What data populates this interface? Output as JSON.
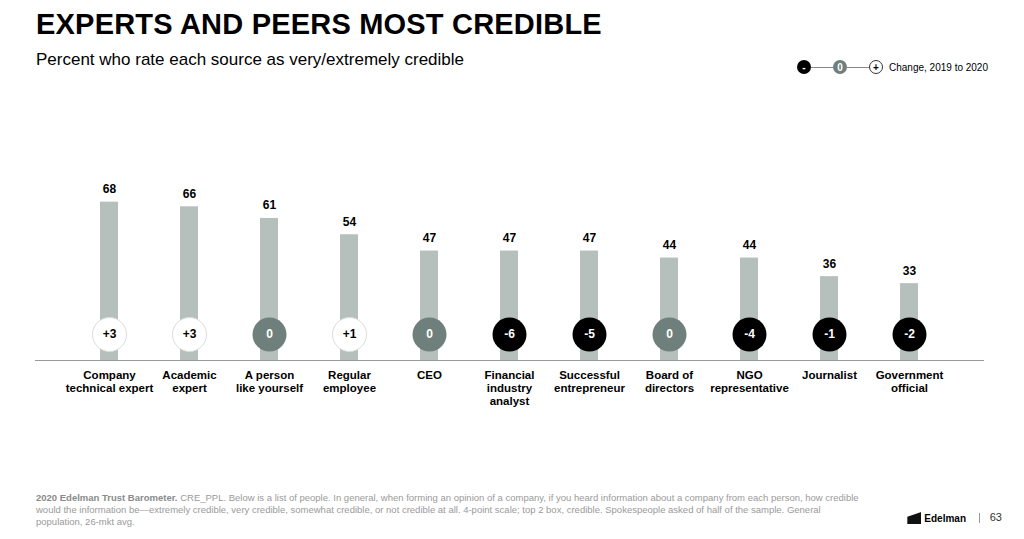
{
  "chart_data": {
    "type": "bar",
    "title": "EXPERTS AND PEERS MOST CREDIBLE",
    "subtitle": "Percent who rate each source as very/extremely credible",
    "categories": [
      "Company\ntechnical expert",
      "Academic\nexpert",
      "A person\nlike yourself",
      "Regular\nemployee",
      "CEO",
      "Financial\nindustry\nanalyst",
      "Successful\nentrepreneur",
      "Board of\ndirectors",
      "NGO\nrepresentative",
      "Journalist",
      "Government\nofficial"
    ],
    "values": [
      68,
      66,
      61,
      54,
      47,
      47,
      47,
      44,
      44,
      36,
      33
    ],
    "changes": [
      3,
      3,
      0,
      1,
      0,
      -6,
      -5,
      0,
      -4,
      -1,
      -2
    ],
    "change_labels": [
      "+3",
      "+3",
      "0",
      "+1",
      "0",
      "-6",
      "-5",
      "0",
      "-4",
      "-1",
      "-2"
    ],
    "color": "#b5bfbc",
    "ylim": [
      0,
      73
    ],
    "data_labels": true,
    "tick_labels": "x",
    "legend": "top-right",
    "legend_labels": [
      "-",
      "0",
      "+"
    ],
    "legend_title": "Change, 2019 to 2020",
    "source": "2020 Edelman Trust Barometer.",
    "note": "CRE_PPL. Below is a list of people. In general, when forming an opinion of a company, if you heard information about a company from each person, how credible would the information be—extremely credible, very credible, somewhat credible, or not credible at all. 4-point scale; top 2 box, credible. Spokespeople asked of half of the sample. General population, 26-mkt avg.",
    "brand": "Edelman",
    "page": "63"
  }
}
